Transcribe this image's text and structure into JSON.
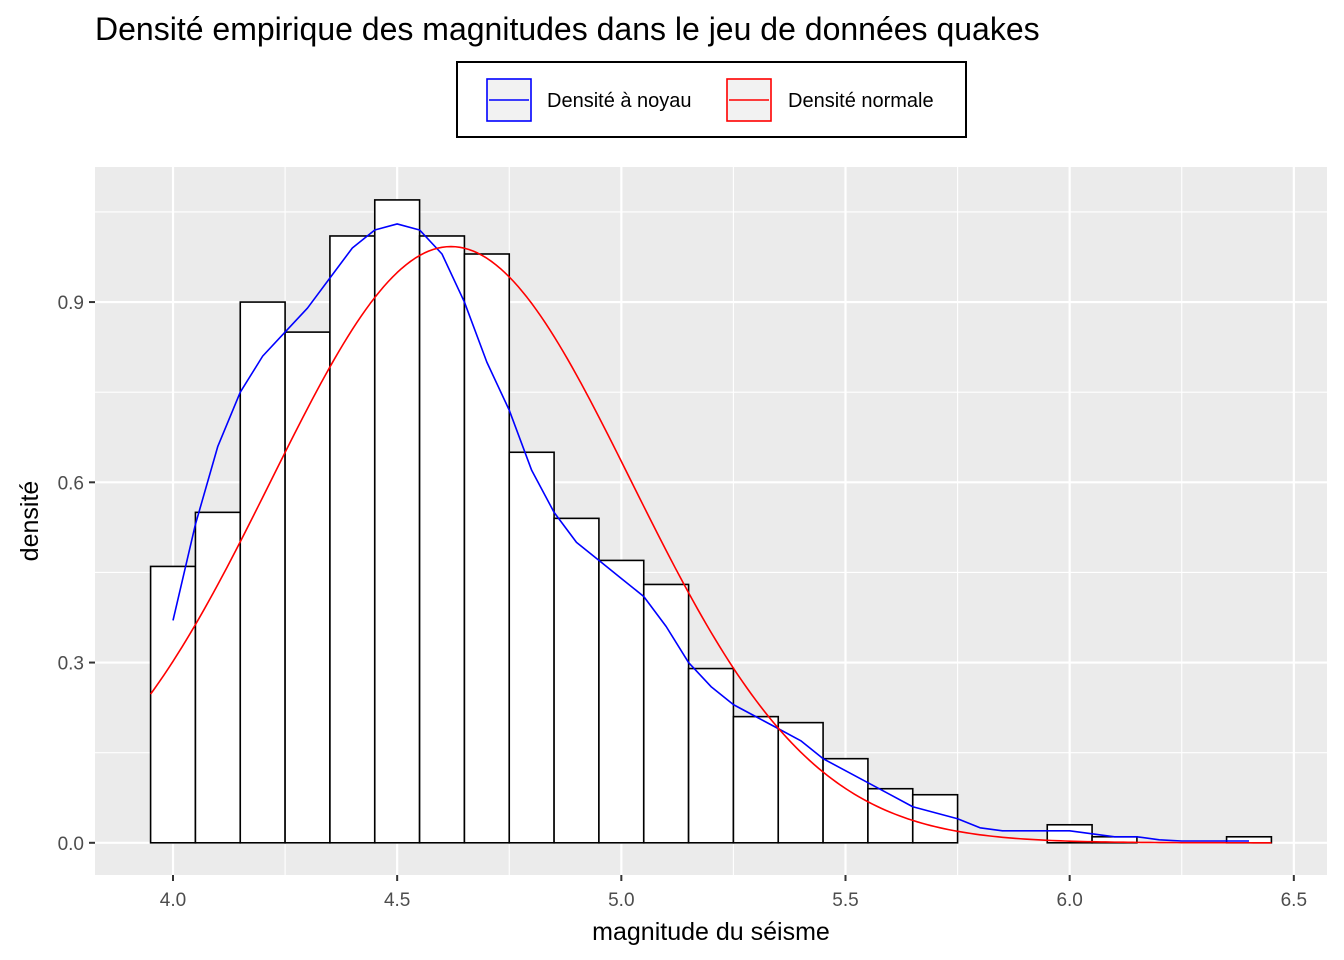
{
  "chart_data": {
    "type": "histogram",
    "title": "Densité empirique des magnitudes dans le jeu de données quakes",
    "xlabel": "magnitude du séisme",
    "ylabel": "densité",
    "xlim": [
      3.826,
      6.574
    ],
    "ylim": [
      -0.0536,
      1.1248
    ],
    "x_ticks": [
      4.0,
      4.5,
      5.0,
      5.5,
      6.0,
      6.5
    ],
    "x_tick_labels": [
      "4.0",
      "4.5",
      "5.0",
      "5.5",
      "6.0",
      "6.5"
    ],
    "y_ticks": [
      0.0,
      0.3,
      0.6,
      0.9
    ],
    "y_tick_labels": [
      "0.0",
      "0.3",
      "0.6",
      "0.9"
    ],
    "grid": true,
    "legend_position": "top",
    "histogram": {
      "bin_width": 0.1,
      "bin_edges": [
        3.95,
        4.05,
        4.15,
        4.25,
        4.35,
        4.45,
        4.55,
        4.65,
        4.75,
        4.85,
        4.95,
        5.05,
        5.15,
        5.25,
        5.35,
        5.45,
        5.55,
        5.65,
        5.75,
        5.85,
        5.95,
        6.05,
        6.15,
        6.25,
        6.35,
        6.45
      ],
      "densities": [
        0.46,
        0.55,
        0.9,
        0.85,
        1.01,
        1.07,
        1.01,
        0.98,
        0.65,
        0.54,
        0.47,
        0.43,
        0.29,
        0.21,
        0.2,
        0.14,
        0.09,
        0.08,
        0.0,
        0.0,
        0.03,
        0.01,
        0.0,
        0.0,
        0.01
      ],
      "fill": "#ffffff",
      "stroke": "#000000"
    },
    "series": [
      {
        "name": "Densité à noyau",
        "color": "#0000ff",
        "x": [
          4.0,
          4.05,
          4.1,
          4.15,
          4.2,
          4.25,
          4.3,
          4.35,
          4.4,
          4.45,
          4.5,
          4.55,
          4.6,
          4.65,
          4.7,
          4.75,
          4.8,
          4.85,
          4.9,
          4.95,
          5.0,
          5.05,
          5.1,
          5.15,
          5.2,
          5.25,
          5.3,
          5.35,
          5.4,
          5.45,
          5.5,
          5.55,
          5.6,
          5.65,
          5.7,
          5.75,
          5.8,
          5.85,
          5.9,
          5.95,
          6.0,
          6.05,
          6.1,
          6.15,
          6.2,
          6.25,
          6.3,
          6.35,
          6.4
        ],
        "y": [
          0.37,
          0.53,
          0.66,
          0.75,
          0.81,
          0.85,
          0.89,
          0.94,
          0.99,
          1.02,
          1.03,
          1.02,
          0.98,
          0.9,
          0.8,
          0.72,
          0.62,
          0.55,
          0.5,
          0.47,
          0.44,
          0.41,
          0.36,
          0.3,
          0.26,
          0.23,
          0.21,
          0.19,
          0.17,
          0.14,
          0.12,
          0.1,
          0.08,
          0.06,
          0.05,
          0.04,
          0.025,
          0.02,
          0.02,
          0.02,
          0.02,
          0.015,
          0.01,
          0.01,
          0.005,
          0.003,
          0.003,
          0.003,
          0.003
        ]
      },
      {
        "name": "Densité normale",
        "color": "#ff0000",
        "mean": 4.62,
        "sd": 0.402,
        "x_range": [
          3.95,
          6.45
        ]
      }
    ]
  }
}
